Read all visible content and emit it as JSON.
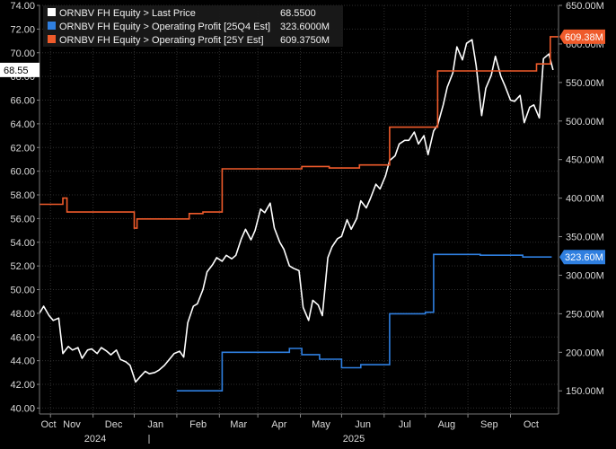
{
  "chart_data": {
    "type": "line",
    "legend": {
      "placement": "top-left",
      "entries": [
        {
          "label": "ORNBV FH Equity > Last Price",
          "value": "68.5500",
          "color": "#ffffff"
        },
        {
          "label": "ORNBV FH Equity > Operating Profit [25Q4 Est]",
          "value": "323.6000M",
          "color": "#2f7fe0"
        },
        {
          "label": "ORNBV FH Equity > Operating Profit [25Y Est]",
          "value": "609.3750M",
          "color": "#ef5b2b"
        }
      ]
    },
    "left_axis": {
      "ylim": [
        39.5,
        74.0
      ],
      "ticks": [
        "40.00",
        "42.00",
        "44.00",
        "46.00",
        "48.00",
        "50.00",
        "52.00",
        "54.00",
        "56.00",
        "58.00",
        "60.00",
        "62.00",
        "64.00",
        "66.00",
        "68.00",
        "70.00",
        "72.00",
        "74.00"
      ]
    },
    "right_axis": {
      "ylim": [
        120,
        650
      ],
      "ticks": [
        "150.00M",
        "200.00M",
        "250.00M",
        "300.00M",
        "350.00M",
        "400.00M",
        "450.00M",
        "500.00M",
        "550.00M",
        "600.00M",
        "650.00M"
      ]
    },
    "x_axis": {
      "months": [
        "Oct",
        "Nov",
        "Dec",
        "Jan",
        "Feb",
        "Mar",
        "Apr",
        "May",
        "Jun",
        "Jul",
        "Aug",
        "Sep",
        "Oct"
      ],
      "years": [
        "2024",
        "2025"
      ],
      "range": [
        "2024-09-23",
        "2025-10-06"
      ]
    },
    "grid": true,
    "series": [
      {
        "name": "ORNBV FH Equity > Last Price",
        "axis": "left",
        "color": "#ffffff",
        "last_label": "68.55",
        "points": [
          [
            "2024-09-23",
            48.0
          ],
          [
            "2024-09-26",
            48.6
          ],
          [
            "2024-09-30",
            47.8
          ],
          [
            "2024-10-03",
            47.4
          ],
          [
            "2024-10-07",
            47.6
          ],
          [
            "2024-10-10",
            44.6
          ],
          [
            "2024-10-14",
            45.2
          ],
          [
            "2024-10-17",
            44.9
          ],
          [
            "2024-10-21",
            45.1
          ],
          [
            "2024-10-24",
            44.2
          ],
          [
            "2024-10-28",
            44.9
          ],
          [
            "2024-10-31",
            45.0
          ],
          [
            "2024-11-04",
            44.6
          ],
          [
            "2024-11-07",
            45.1
          ],
          [
            "2024-11-11",
            44.8
          ],
          [
            "2024-11-14",
            44.5
          ],
          [
            "2024-11-18",
            44.9
          ],
          [
            "2024-11-21",
            44.1
          ],
          [
            "2024-11-25",
            43.9
          ],
          [
            "2024-11-28",
            43.6
          ],
          [
            "2024-12-02",
            42.2
          ],
          [
            "2024-12-05",
            42.6
          ],
          [
            "2024-12-09",
            43.1
          ],
          [
            "2024-12-12",
            42.9
          ],
          [
            "2024-12-16",
            43.0
          ],
          [
            "2024-12-19",
            43.2
          ],
          [
            "2024-12-23",
            43.6
          ],
          [
            "2024-12-30",
            44.6
          ],
          [
            "2025-01-03",
            44.8
          ],
          [
            "2025-01-06",
            44.3
          ],
          [
            "2025-01-09",
            47.2
          ],
          [
            "2025-01-13",
            48.6
          ],
          [
            "2025-01-16",
            48.8
          ],
          [
            "2025-01-20",
            50.0
          ],
          [
            "2025-01-23",
            51.5
          ],
          [
            "2025-01-27",
            52.1
          ],
          [
            "2025-01-30",
            52.7
          ],
          [
            "2025-02-03",
            52.4
          ],
          [
            "2025-02-06",
            52.9
          ],
          [
            "2025-02-10",
            52.6
          ],
          [
            "2025-02-13",
            52.9
          ],
          [
            "2025-02-17",
            54.3
          ],
          [
            "2025-02-20",
            55.1
          ],
          [
            "2025-02-24",
            54.2
          ],
          [
            "2025-02-27",
            55.0
          ],
          [
            "2025-03-03",
            56.8
          ],
          [
            "2025-03-06",
            56.5
          ],
          [
            "2025-03-10",
            57.3
          ],
          [
            "2025-03-13",
            55.2
          ],
          [
            "2025-03-17",
            54.0
          ],
          [
            "2025-03-20",
            53.4
          ],
          [
            "2025-03-24",
            52.0
          ],
          [
            "2025-03-27",
            51.8
          ],
          [
            "2025-03-31",
            51.6
          ],
          [
            "2025-04-03",
            48.5
          ],
          [
            "2025-04-07",
            47.4
          ],
          [
            "2025-04-10",
            49.1
          ],
          [
            "2025-04-14",
            48.7
          ],
          [
            "2025-04-17",
            47.8
          ],
          [
            "2025-04-21",
            52.7
          ],
          [
            "2025-04-24",
            53.6
          ],
          [
            "2025-04-28",
            54.3
          ],
          [
            "2025-05-01",
            54.5
          ],
          [
            "2025-05-05",
            55.9
          ],
          [
            "2025-05-08",
            55.1
          ],
          [
            "2025-05-12",
            56.0
          ],
          [
            "2025-05-15",
            57.5
          ],
          [
            "2025-05-19",
            56.9
          ],
          [
            "2025-05-22",
            57.7
          ],
          [
            "2025-05-26",
            58.9
          ],
          [
            "2025-05-29",
            58.5
          ],
          [
            "2025-06-02",
            59.6
          ],
          [
            "2025-06-05",
            60.9
          ],
          [
            "2025-06-09",
            61.3
          ],
          [
            "2025-06-12",
            62.3
          ],
          [
            "2025-06-16",
            62.6
          ],
          [
            "2025-06-19",
            62.6
          ],
          [
            "2025-06-23",
            63.3
          ],
          [
            "2025-06-26",
            62.3
          ],
          [
            "2025-06-30",
            63.0
          ],
          [
            "2025-07-03",
            61.4
          ],
          [
            "2025-07-07",
            63.4
          ],
          [
            "2025-07-10",
            63.9
          ],
          [
            "2025-07-14",
            65.6
          ],
          [
            "2025-07-17",
            67.1
          ],
          [
            "2025-07-21",
            68.3
          ],
          [
            "2025-07-24",
            70.5
          ],
          [
            "2025-07-28",
            69.4
          ],
          [
            "2025-07-31",
            70.8
          ],
          [
            "2025-08-04",
            71.1
          ],
          [
            "2025-08-07",
            68.9
          ],
          [
            "2025-08-11",
            64.7
          ],
          [
            "2025-08-14",
            67.0
          ],
          [
            "2025-08-18",
            68.1
          ],
          [
            "2025-08-21",
            69.7
          ],
          [
            "2025-08-25",
            68.0
          ],
          [
            "2025-08-28",
            67.2
          ],
          [
            "2025-09-01",
            66.0
          ],
          [
            "2025-09-04",
            65.9
          ],
          [
            "2025-09-08",
            66.4
          ],
          [
            "2025-09-11",
            64.1
          ],
          [
            "2025-09-15",
            65.4
          ],
          [
            "2025-09-18",
            65.6
          ],
          [
            "2025-09-22",
            64.5
          ],
          [
            "2025-09-25",
            69.5
          ],
          [
            "2025-09-29",
            69.9
          ],
          [
            "2025-10-02",
            68.55
          ]
        ]
      },
      {
        "name": "ORNBV FH Equity > Operating Profit [25Y Est]",
        "axis": "right",
        "color": "#ef5b2b",
        "last_label": "609.38M",
        "steps": [
          [
            "2024-09-23",
            392
          ],
          [
            "2024-10-10",
            400
          ],
          [
            "2024-10-13",
            382
          ],
          [
            "2024-12-01",
            361
          ],
          [
            "2024-12-03",
            373
          ],
          [
            "2025-01-10",
            380
          ],
          [
            "2025-01-20",
            382
          ],
          [
            "2025-02-03",
            438
          ],
          [
            "2025-04-02",
            441
          ],
          [
            "2025-04-22",
            439
          ],
          [
            "2025-05-14",
            443
          ],
          [
            "2025-06-05",
            492
          ],
          [
            "2025-07-10",
            565
          ],
          [
            "2025-09-20",
            574
          ],
          [
            "2025-09-30",
            609.375
          ],
          [
            "2025-10-06",
            609.375
          ]
        ]
      },
      {
        "name": "ORNBV FH Equity > Operating Profit [25Q4 Est]",
        "axis": "right",
        "color": "#2f7fe0",
        "last_label": "323.60M",
        "steps": [
          [
            "2025-01-01",
            150
          ],
          [
            "2025-02-03",
            200
          ],
          [
            "2025-03-24",
            205
          ],
          [
            "2025-04-02",
            197
          ],
          [
            "2025-04-15",
            191
          ],
          [
            "2025-05-01",
            180
          ],
          [
            "2025-05-15",
            184
          ],
          [
            "2025-06-05",
            250
          ],
          [
            "2025-07-01",
            252
          ],
          [
            "2025-07-07",
            327
          ],
          [
            "2025-08-10",
            326
          ],
          [
            "2025-09-10",
            323.6
          ],
          [
            "2025-10-01",
            323.6
          ]
        ]
      }
    ]
  }
}
